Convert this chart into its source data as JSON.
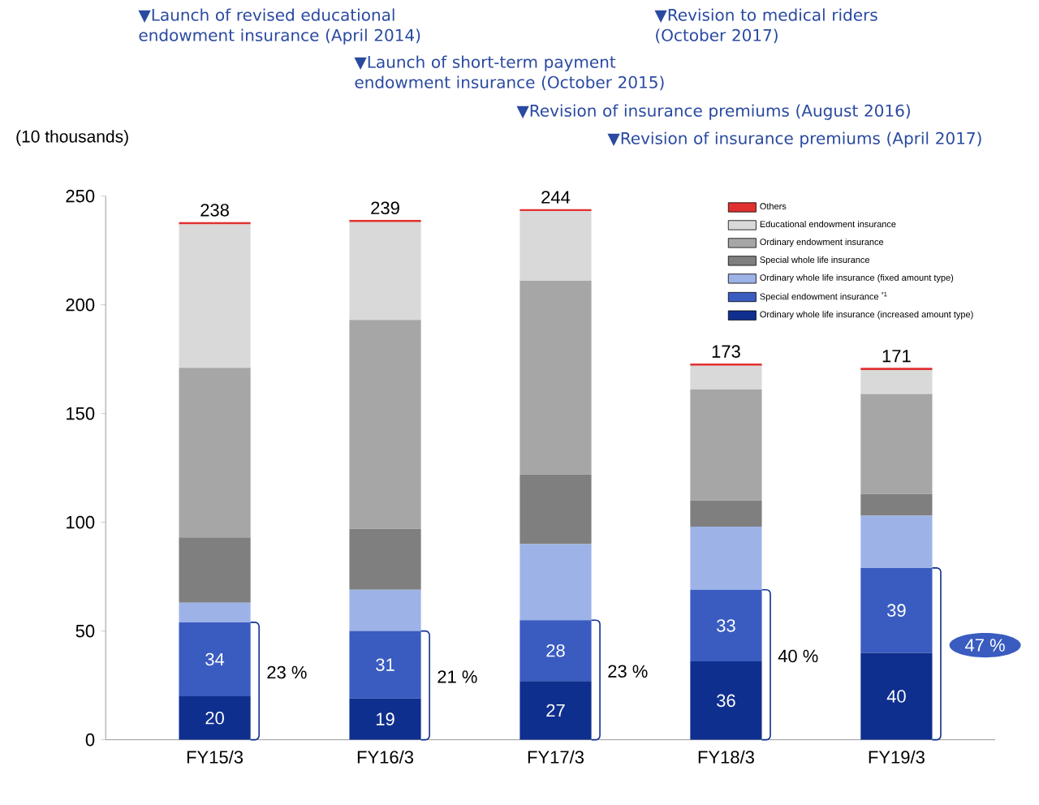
{
  "chart_data": {
    "type": "bar",
    "stacked": true,
    "ylabel": "(10 thousands)",
    "categories": [
      "FY15/3",
      "FY16/3",
      "FY17/3",
      "FY18/3",
      "FY19/3"
    ],
    "series": [
      {
        "name": "Ordinary whole life insurance (increased amount type)",
        "color": "#0f2f8f",
        "values": [
          20,
          19,
          27,
          36,
          40
        ],
        "value_labels": [
          "20",
          "19",
          "27",
          "36",
          "40"
        ]
      },
      {
        "name": "Special endowment insurance $^{*1}$",
        "color": "#3a5cc0",
        "values": [
          34,
          31,
          28,
          33,
          39
        ],
        "value_labels": [
          "34",
          "31",
          "28",
          "33",
          "39"
        ]
      },
      {
        "name": "Ordinary whole life insurance (fixed amount type)",
        "color": "#9db3e8",
        "values": [
          9,
          19,
          35,
          29,
          24
        ]
      },
      {
        "name": "Special whole life insurance",
        "color": "#7f7f7f",
        "values": [
          30,
          28,
          32,
          12,
          10
        ]
      },
      {
        "name": "Ordinary endowment insurance",
        "color": "#a6a6a6",
        "values": [
          78,
          96,
          89,
          51,
          46
        ]
      },
      {
        "name": "Educational endowment insurance",
        "color": "#d9d9d9",
        "values": [
          66,
          45,
          32,
          11,
          11
        ]
      },
      {
        "name": "Others",
        "color": "#e03030",
        "values": [
          1,
          1,
          1,
          1,
          1
        ]
      }
    ],
    "totals": [
      "238",
      "239",
      "244",
      "173",
      "171"
    ],
    "ylim": [
      0,
      250
    ],
    "yticks": [
      0,
      50,
      100,
      150,
      200,
      250
    ],
    "legend": "top right",
    "annotations": [
      "▼Launch of revised educational endowment insurance (April 2014)",
      "▼Launch of short-term payment endowment insurance (October 2015)",
      "▼Revision of insurance premiums (August 2016)",
      "▼Revision of insurance premiums (April 2017)",
      "▼Revision to medical riders (October 2017)",
      "23 %",
      "21 %",
      "23 %",
      "40 %",
      "47 %"
    ]
  }
}
